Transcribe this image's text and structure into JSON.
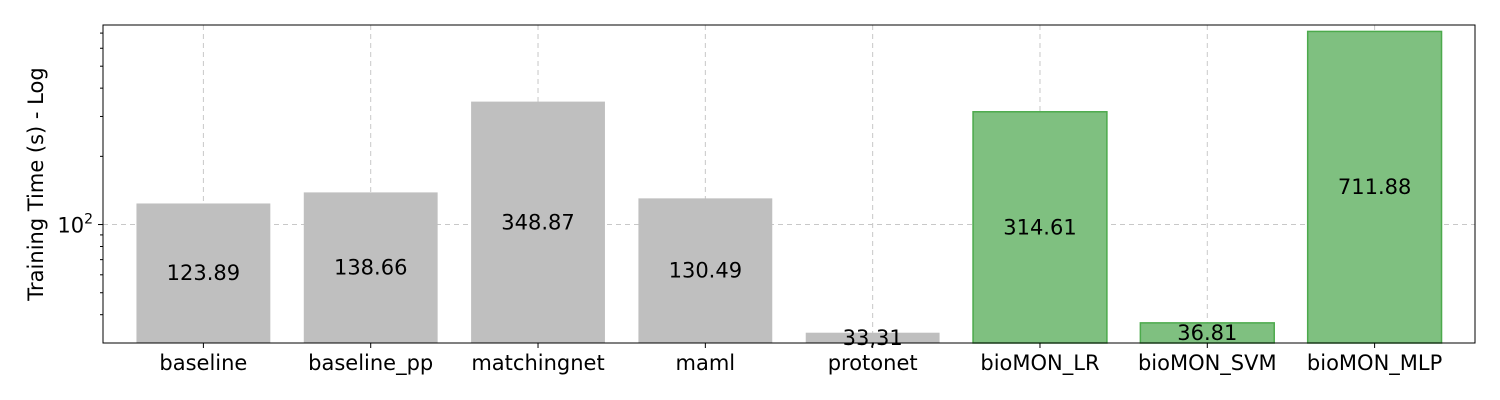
{
  "chart_data": {
    "type": "bar",
    "categories": [
      "baseline",
      "baseline_pp",
      "matchingnet",
      "maml",
      "protonet",
      "bioMON_LR",
      "bioMON_SVM",
      "bioMON_MLP"
    ],
    "values": [
      123.89,
      138.66,
      348.87,
      130.49,
      33.31,
      314.61,
      36.81,
      711.88
    ],
    "data_labels": [
      "123.89",
      "138.66",
      "348.87",
      "130.49",
      "33,31",
      "314.61",
      "36.81",
      "711.88"
    ],
    "bar_colors": [
      "#bfbfbf",
      "#bfbfbf",
      "#bfbfbf",
      "#bfbfbf",
      "#bfbfbf",
      "#7fc080",
      "#7fc080",
      "#7fc080"
    ],
    "bar_edge_colors": [
      "none",
      "none",
      "none",
      "none",
      "none",
      "#4caa4c",
      "#4caa4c",
      "#4caa4c"
    ],
    "ylabel": "Training Time (s) - Log",
    "yscale": "log",
    "ylim": [
      30,
      760
    ],
    "y_ticks": [
      {
        "value": 100,
        "base": "10",
        "exp": "2"
      }
    ],
    "grid": true
  }
}
